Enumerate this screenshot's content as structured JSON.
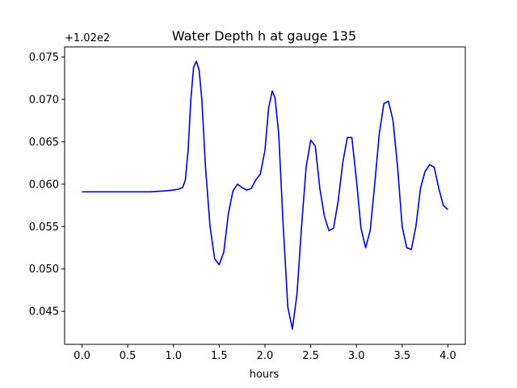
{
  "chart_data": {
    "type": "line",
    "title": "Water Depth h at gauge 135",
    "xlabel": "hours",
    "ylabel": "",
    "offset_label": "+1.02e2",
    "xlim": [
      -0.19,
      4.19
    ],
    "ylim": [
      0.0411,
      0.0762
    ],
    "x_ticks": [
      0.0,
      0.5,
      1.0,
      1.5,
      2.0,
      2.5,
      3.0,
      3.5,
      4.0
    ],
    "x_tick_labels": [
      "0.0",
      "0.5",
      "1.0",
      "1.5",
      "2.0",
      "2.5",
      "3.0",
      "3.5",
      "4.0"
    ],
    "y_ticks": [
      0.045,
      0.05,
      0.055,
      0.06,
      0.065,
      0.07,
      0.075
    ],
    "y_tick_labels": [
      "0.045",
      "0.050",
      "0.055",
      "0.060",
      "0.065",
      "0.070",
      "0.075"
    ],
    "grid": false,
    "series": [
      {
        "color": "#0000cc",
        "x": [
          0.0,
          0.25,
          0.5,
          0.75,
          0.9,
          1.0,
          1.05,
          1.1,
          1.13,
          1.16,
          1.19,
          1.22,
          1.25,
          1.28,
          1.31,
          1.35,
          1.4,
          1.45,
          1.5,
          1.55,
          1.6,
          1.65,
          1.7,
          1.75,
          1.8,
          1.85,
          1.9,
          1.95,
          2.0,
          2.04,
          2.08,
          2.11,
          2.15,
          2.2,
          2.25,
          2.3,
          2.35,
          2.4,
          2.45,
          2.5,
          2.55,
          2.6,
          2.65,
          2.7,
          2.75,
          2.8,
          2.85,
          2.9,
          2.95,
          3.0,
          3.05,
          3.1,
          3.15,
          3.2,
          3.25,
          3.3,
          3.35,
          3.4,
          3.45,
          3.5,
          3.55,
          3.6,
          3.65,
          3.7,
          3.75,
          3.8,
          3.85,
          3.9,
          3.95,
          4.0
        ],
        "y": [
          0.0591,
          0.0591,
          0.0591,
          0.0591,
          0.0592,
          0.0593,
          0.0594,
          0.0596,
          0.0605,
          0.064,
          0.07,
          0.0738,
          0.0745,
          0.0735,
          0.07,
          0.062,
          0.055,
          0.0512,
          0.0505,
          0.052,
          0.0565,
          0.0592,
          0.06,
          0.0596,
          0.0593,
          0.0595,
          0.0605,
          0.0612,
          0.064,
          0.069,
          0.071,
          0.0702,
          0.066,
          0.055,
          0.0455,
          0.0429,
          0.047,
          0.055,
          0.062,
          0.0652,
          0.0645,
          0.0595,
          0.0562,
          0.0545,
          0.0548,
          0.058,
          0.0625,
          0.0655,
          0.0655,
          0.0605,
          0.0548,
          0.0525,
          0.0545,
          0.06,
          0.066,
          0.0695,
          0.0698,
          0.0675,
          0.062,
          0.055,
          0.0525,
          0.0523,
          0.055,
          0.0595,
          0.0615,
          0.0623,
          0.062,
          0.0595,
          0.0575,
          0.057
        ]
      }
    ]
  }
}
